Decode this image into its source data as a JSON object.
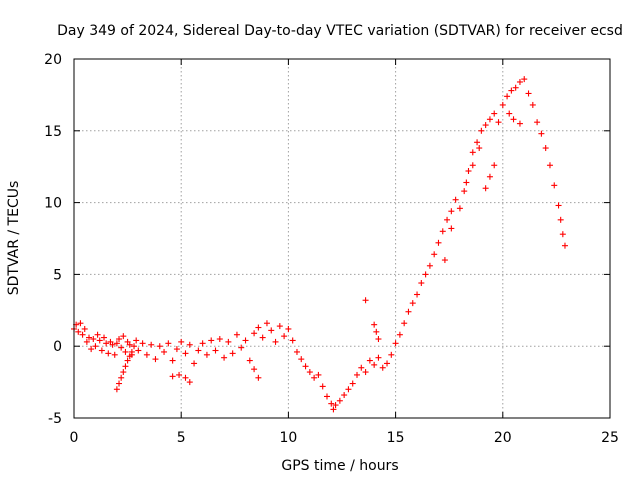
{
  "chart_data": {
    "type": "scatter",
    "title": "Day 349 of 2024, Sidereal Day-to-day VTEC variation (SDTVAR) for receiver ecsd",
    "xlabel": "GPS time / hours",
    "ylabel": "SDTVAR / TECUs",
    "xlim": [
      0,
      25
    ],
    "ylim": [
      -5,
      20
    ],
    "x_ticks": [
      "0",
      "5",
      "10",
      "15",
      "20",
      "25"
    ],
    "y_ticks": [
      "-5",
      "0",
      "5",
      "10",
      "15",
      "20"
    ],
    "grid": true,
    "marker": "plus",
    "color": "#ff0000",
    "series": [
      {
        "name": "SDTVAR",
        "points": [
          [
            0.0,
            1.2
          ],
          [
            0.1,
            1.5
          ],
          [
            0.2,
            1.0
          ],
          [
            0.3,
            1.6
          ],
          [
            0.4,
            0.8
          ],
          [
            0.5,
            1.2
          ],
          [
            0.6,
            0.3
          ],
          [
            0.7,
            0.6
          ],
          [
            0.8,
            -0.2
          ],
          [
            0.9,
            0.5
          ],
          [
            1.0,
            0.0
          ],
          [
            1.1,
            0.8
          ],
          [
            1.2,
            0.4
          ],
          [
            1.3,
            -0.3
          ],
          [
            1.4,
            0.6
          ],
          [
            1.5,
            0.2
          ],
          [
            1.6,
            -0.5
          ],
          [
            1.7,
            0.3
          ],
          [
            1.8,
            0.1
          ],
          [
            1.9,
            -0.6
          ],
          [
            2.0,
            0.2
          ],
          [
            2.1,
            0.5
          ],
          [
            2.2,
            -0.1
          ],
          [
            2.3,
            0.7
          ],
          [
            2.4,
            -0.4
          ],
          [
            2.5,
            0.3
          ],
          [
            2.6,
            0.1
          ],
          [
            2.7,
            -0.6
          ],
          [
            2.8,
            0.0
          ],
          [
            2.9,
            0.4
          ],
          [
            2.0,
            -3.0
          ],
          [
            2.1,
            -2.6
          ],
          [
            2.2,
            -2.2
          ],
          [
            2.3,
            -1.8
          ],
          [
            2.4,
            -1.4
          ],
          [
            2.5,
            -1.0
          ],
          [
            2.6,
            -0.7
          ],
          [
            2.7,
            -0.4
          ],
          [
            3.0,
            -0.3
          ],
          [
            3.2,
            0.2
          ],
          [
            3.4,
            -0.6
          ],
          [
            3.6,
            0.1
          ],
          [
            3.8,
            -0.9
          ],
          [
            4.0,
            0.0
          ],
          [
            4.2,
            -0.4
          ],
          [
            4.4,
            0.2
          ],
          [
            4.6,
            -1.0
          ],
          [
            4.8,
            -0.2
          ],
          [
            5.0,
            0.3
          ],
          [
            5.2,
            -0.5
          ],
          [
            5.4,
            0.1
          ],
          [
            5.6,
            -1.2
          ],
          [
            5.8,
            -0.3
          ],
          [
            6.0,
            0.2
          ],
          [
            4.6,
            -2.1
          ],
          [
            4.9,
            -2.0
          ],
          [
            5.4,
            -2.5
          ],
          [
            5.2,
            -2.2
          ],
          [
            6.2,
            -0.6
          ],
          [
            6.4,
            0.4
          ],
          [
            6.6,
            -0.3
          ],
          [
            6.8,
            0.5
          ],
          [
            7.0,
            -0.8
          ],
          [
            7.2,
            0.3
          ],
          [
            7.4,
            -0.5
          ],
          [
            7.6,
            0.8
          ],
          [
            7.8,
            -0.1
          ],
          [
            8.0,
            0.4
          ],
          [
            8.2,
            -1.0
          ],
          [
            8.4,
            -1.6
          ],
          [
            8.6,
            -2.2
          ],
          [
            8.4,
            0.9
          ],
          [
            8.6,
            1.3
          ],
          [
            8.8,
            0.6
          ],
          [
            9.0,
            1.6
          ],
          [
            9.2,
            1.1
          ],
          [
            9.4,
            0.3
          ],
          [
            9.6,
            1.4
          ],
          [
            9.8,
            0.7
          ],
          [
            10.0,
            1.2
          ],
          [
            10.2,
            0.4
          ],
          [
            10.4,
            -0.4
          ],
          [
            10.6,
            -0.9
          ],
          [
            10.8,
            -1.4
          ],
          [
            11.0,
            -1.8
          ],
          [
            11.2,
            -2.2
          ],
          [
            11.4,
            -2.0
          ],
          [
            11.6,
            -2.8
          ],
          [
            11.8,
            -3.5
          ],
          [
            12.0,
            -4.0
          ],
          [
            12.1,
            -4.4
          ],
          [
            12.2,
            -4.1
          ],
          [
            12.4,
            -3.8
          ],
          [
            12.6,
            -3.4
          ],
          [
            12.8,
            -3.0
          ],
          [
            13.0,
            -2.6
          ],
          [
            13.2,
            -2.0
          ],
          [
            13.4,
            -1.5
          ],
          [
            13.6,
            -1.8
          ],
          [
            13.8,
            -1.0
          ],
          [
            14.0,
            -1.3
          ],
          [
            14.2,
            -0.8
          ],
          [
            14.4,
            -1.5
          ],
          [
            14.6,
            -1.2
          ],
          [
            14.8,
            -0.6
          ],
          [
            13.6,
            3.2
          ],
          [
            14.0,
            1.5
          ],
          [
            14.1,
            1.0
          ],
          [
            14.2,
            0.5
          ],
          [
            15.0,
            0.2
          ],
          [
            15.2,
            0.8
          ],
          [
            15.4,
            1.6
          ],
          [
            15.6,
            2.4
          ],
          [
            15.8,
            3.0
          ],
          [
            16.0,
            3.6
          ],
          [
            16.2,
            4.4
          ],
          [
            16.4,
            5.0
          ],
          [
            16.6,
            5.6
          ],
          [
            16.8,
            6.4
          ],
          [
            17.0,
            7.2
          ],
          [
            17.2,
            8.0
          ],
          [
            17.4,
            8.8
          ],
          [
            17.6,
            9.4
          ],
          [
            17.8,
            10.2
          ],
          [
            17.3,
            6.0
          ],
          [
            17.6,
            8.2
          ],
          [
            18.0,
            9.6
          ],
          [
            18.2,
            10.8
          ],
          [
            18.4,
            12.2
          ],
          [
            18.6,
            13.5
          ],
          [
            18.8,
            14.2
          ],
          [
            19.0,
            15.0
          ],
          [
            19.2,
            15.4
          ],
          [
            19.4,
            15.8
          ],
          [
            19.6,
            16.2
          ],
          [
            19.8,
            15.6
          ],
          [
            18.3,
            11.4
          ],
          [
            18.6,
            12.6
          ],
          [
            18.9,
            13.8
          ],
          [
            19.2,
            11.0
          ],
          [
            19.4,
            11.8
          ],
          [
            19.6,
            12.6
          ],
          [
            20.0,
            16.8
          ],
          [
            20.2,
            17.4
          ],
          [
            20.4,
            17.8
          ],
          [
            20.6,
            18.0
          ],
          [
            20.8,
            18.4
          ],
          [
            21.0,
            18.6
          ],
          [
            21.2,
            17.6
          ],
          [
            20.3,
            16.2
          ],
          [
            20.5,
            15.8
          ],
          [
            20.8,
            15.5
          ],
          [
            21.4,
            16.8
          ],
          [
            21.6,
            15.6
          ],
          [
            21.8,
            14.8
          ],
          [
            22.0,
            13.8
          ],
          [
            22.2,
            12.6
          ],
          [
            22.4,
            11.2
          ],
          [
            22.6,
            9.8
          ],
          [
            22.7,
            8.8
          ],
          [
            22.8,
            7.8
          ],
          [
            22.9,
            7.0
          ]
        ]
      }
    ]
  }
}
